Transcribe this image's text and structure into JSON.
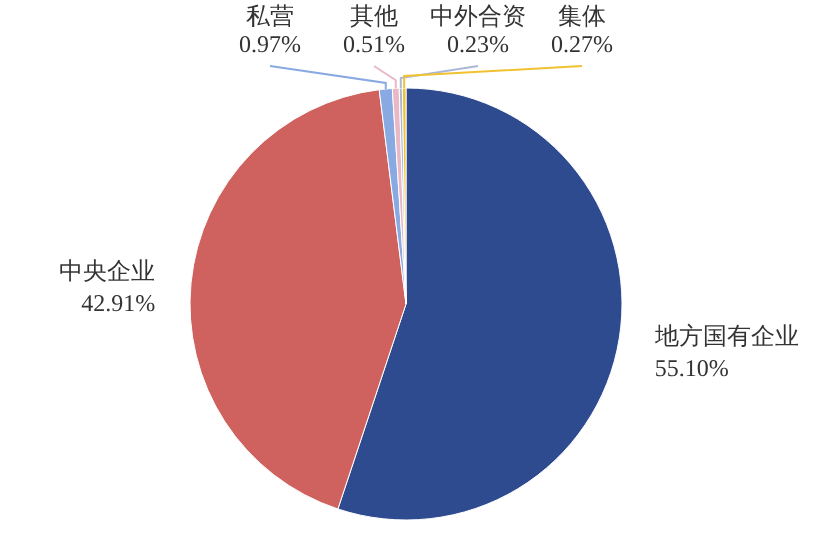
{
  "chart_data": {
    "type": "pie",
    "categories": [
      "地方国有企业",
      "中央企业",
      "私营",
      "其他",
      "中外合资",
      "集体"
    ],
    "values": [
      55.1,
      42.91,
      0.97,
      0.51,
      0.23,
      0.27
    ],
    "value_labels": [
      "55.10%",
      "42.91%",
      "0.97%",
      "0.51%",
      "0.23%",
      "0.27%"
    ],
    "colors": [
      "#2f4b8f",
      "#cf625e",
      "#88a9e2",
      "#e9b8c6",
      "#aab8d6",
      "#f0c232"
    ]
  }
}
